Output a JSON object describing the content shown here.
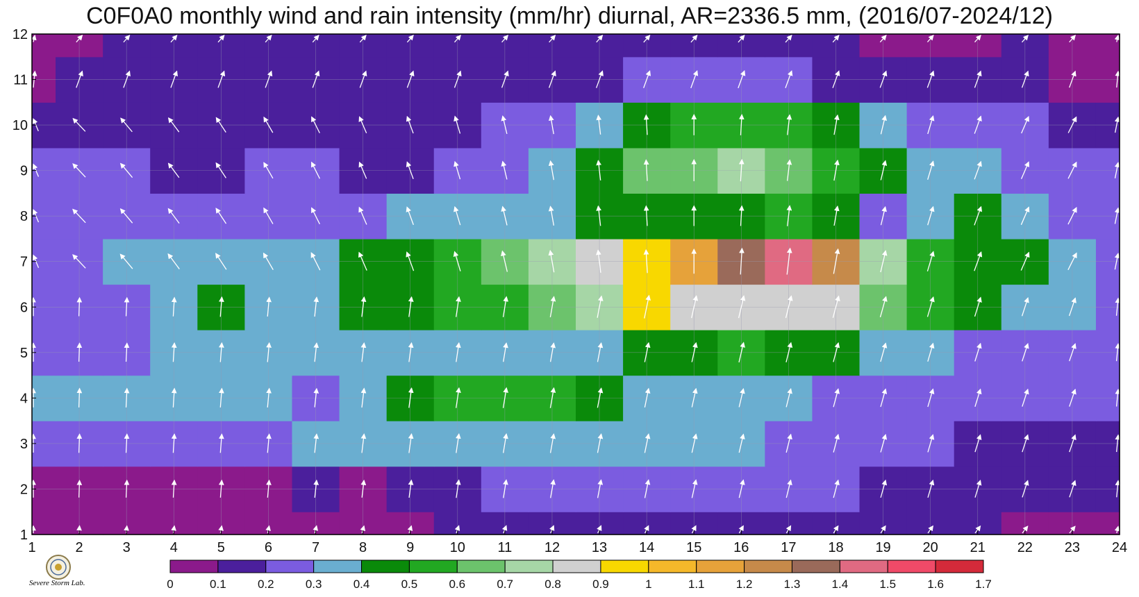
{
  "chart_data": {
    "type": "heatmap",
    "title": "C0F0A0 monthly wind and rain intensity (mm/hr) diurnal, AR=2336.5 mm, (2016/07-2024/12)",
    "xlabel": "",
    "ylabel": "",
    "x": [
      1,
      2,
      3,
      4,
      5,
      6,
      7,
      8,
      9,
      10,
      11,
      12,
      13,
      14,
      15,
      16,
      17,
      18,
      19,
      20,
      21,
      22,
      23,
      24
    ],
    "y": [
      1,
      2,
      3,
      4,
      5,
      6,
      7,
      8,
      9,
      10,
      11,
      12
    ],
    "xlim": [
      1,
      24
    ],
    "ylim": [
      1,
      12
    ],
    "x_ticks": [
      "1",
      "2",
      "3",
      "4",
      "5",
      "6",
      "7",
      "8",
      "9",
      "10",
      "11",
      "12",
      "13",
      "14",
      "15",
      "16",
      "17",
      "18",
      "19",
      "20",
      "21",
      "22",
      "23",
      "24"
    ],
    "y_ticks": [
      "1",
      "2",
      "3",
      "4",
      "5",
      "6",
      "7",
      "8",
      "9",
      "10",
      "11",
      "12"
    ],
    "grid": true,
    "contour_levels": [
      0,
      0.1,
      0.2,
      0.3,
      0.4,
      0.5,
      0.6,
      0.7,
      0.8,
      0.9,
      1,
      1.1,
      1.2,
      1.3,
      1.4,
      1.5,
      1.6,
      1.7
    ],
    "colorbar_labels": [
      "0",
      "0.1",
      "0.2",
      "0.3",
      "0.4",
      "0.5",
      "0.6",
      "0.7",
      "0.8",
      "0.9",
      "1",
      "1.1",
      "1.2",
      "1.3",
      "1.4",
      "1.5",
      "1.6",
      "1.7"
    ],
    "colorbar_colors": [
      "#8b1a8b",
      "#4b1f9c",
      "#7b5ce0",
      "#6aaed0",
      "#0a8a0a",
      "#22a822",
      "#6cc36c",
      "#a6d6a6",
      "#d0d0d0",
      "#f8d800",
      "#f5b82a",
      "#e6a23a",
      "#c68a4a",
      "#9a6a5a",
      "#e06a82",
      "#f04a68",
      "#d42a3a"
    ],
    "values": [
      [
        0.05,
        0.08,
        0.05,
        0.05,
        0.05,
        0.05,
        0.08,
        0.05,
        0.08,
        0.12,
        0.15,
        0.15,
        0.15,
        0.15,
        0.15,
        0.15,
        0.15,
        0.15,
        0.15,
        0.15,
        0.12,
        0.08,
        0.08,
        0.05
      ],
      [
        0.08,
        0.05,
        0.08,
        0.08,
        0.08,
        0.08,
        0.1,
        0.08,
        0.12,
        0.18,
        0.22,
        0.22,
        0.22,
        0.25,
        0.25,
        0.22,
        0.2,
        0.2,
        0.18,
        0.18,
        0.15,
        0.12,
        0.1,
        0.12
      ],
      [
        0.22,
        0.28,
        0.28,
        0.28,
        0.28,
        0.28,
        0.3,
        0.32,
        0.35,
        0.35,
        0.35,
        0.35,
        0.35,
        0.35,
        0.32,
        0.3,
        0.28,
        0.25,
        0.22,
        0.2,
        0.18,
        0.18,
        0.18,
        0.18
      ],
      [
        0.3,
        0.32,
        0.32,
        0.32,
        0.32,
        0.32,
        0.28,
        0.35,
        0.45,
        0.5,
        0.52,
        0.52,
        0.45,
        0.35,
        0.32,
        0.3,
        0.3,
        0.28,
        0.25,
        0.25,
        0.22,
        0.2,
        0.2,
        0.2
      ],
      [
        0.25,
        0.25,
        0.25,
        0.3,
        0.35,
        0.35,
        0.3,
        0.32,
        0.35,
        0.35,
        0.32,
        0.32,
        0.35,
        0.42,
        0.42,
        0.5,
        0.48,
        0.42,
        0.35,
        0.3,
        0.28,
        0.25,
        0.22,
        0.22
      ],
      [
        0.22,
        0.25,
        0.25,
        0.3,
        0.42,
        0.35,
        0.38,
        0.45,
        0.48,
        0.5,
        0.55,
        0.6,
        0.75,
        0.95,
        0.85,
        0.85,
        0.85,
        0.8,
        0.65,
        0.55,
        0.45,
        0.35,
        0.3,
        0.25
      ],
      [
        0.22,
        0.25,
        0.32,
        0.3,
        0.35,
        0.35,
        0.38,
        0.42,
        0.45,
        0.52,
        0.65,
        0.75,
        0.85,
        0.92,
        1.1,
        1.35,
        1.4,
        1.2,
        0.75,
        0.55,
        0.48,
        0.42,
        0.3,
        0.25
      ],
      [
        0.22,
        0.25,
        0.25,
        0.22,
        0.22,
        0.22,
        0.2,
        0.28,
        0.3,
        0.32,
        0.35,
        0.38,
        0.45,
        0.45,
        0.48,
        0.45,
        0.55,
        0.42,
        0.28,
        0.35,
        0.42,
        0.35,
        0.28,
        0.22
      ],
      [
        0.2,
        0.22,
        0.22,
        0.15,
        0.18,
        0.2,
        0.22,
        0.15,
        0.18,
        0.22,
        0.25,
        0.35,
        0.45,
        0.62,
        0.68,
        0.72,
        0.62,
        0.55,
        0.45,
        0.35,
        0.3,
        0.25,
        0.22,
        0.2
      ],
      [
        0.15,
        0.15,
        0.15,
        0.12,
        0.12,
        0.15,
        0.18,
        0.15,
        0.15,
        0.18,
        0.22,
        0.25,
        0.35,
        0.45,
        0.55,
        0.55,
        0.5,
        0.45,
        0.32,
        0.28,
        0.25,
        0.2,
        0.15,
        0.15
      ],
      [
        0.08,
        0.12,
        0.12,
        0.12,
        0.12,
        0.12,
        0.12,
        0.12,
        0.12,
        0.12,
        0.12,
        0.15,
        0.18,
        0.2,
        0.22,
        0.22,
        0.2,
        0.18,
        0.12,
        0.12,
        0.12,
        0.1,
        0.08,
        0.05
      ],
      [
        0.05,
        0.08,
        0.1,
        0.12,
        0.12,
        0.12,
        0.12,
        0.12,
        0.12,
        0.12,
        0.12,
        0.12,
        0.12,
        0.15,
        0.15,
        0.15,
        0.15,
        0.12,
        0.08,
        0.05,
        0.08,
        0.12,
        0.08,
        0.05
      ]
    ]
  },
  "logo": {
    "text": "Severe Storm Lab."
  }
}
